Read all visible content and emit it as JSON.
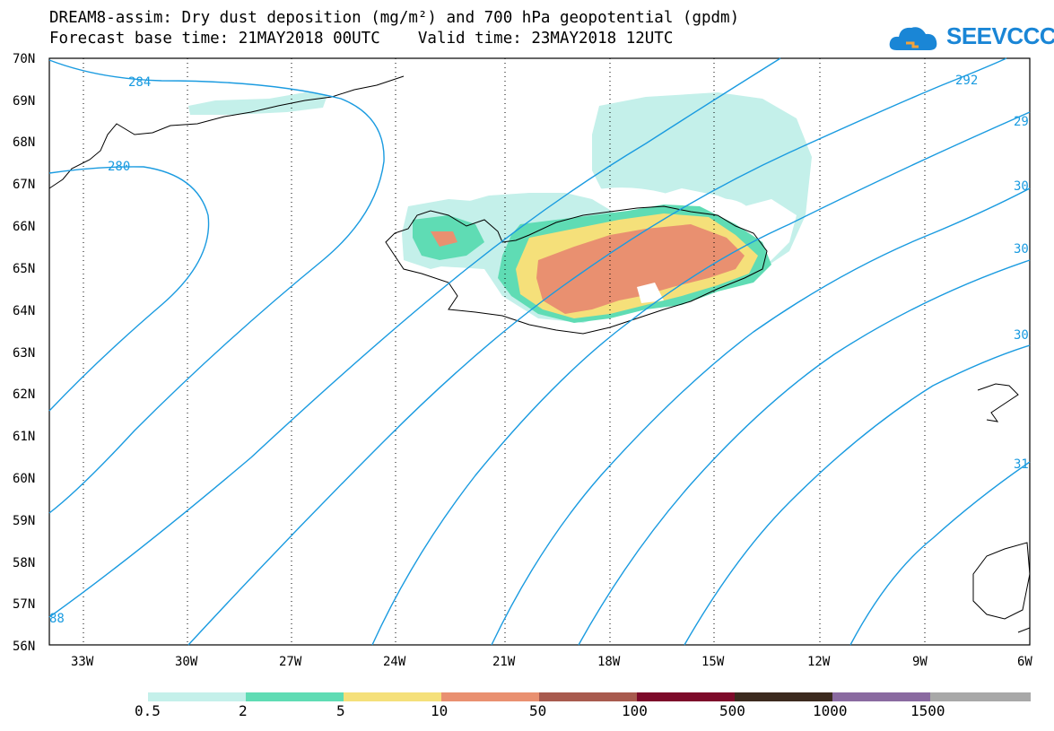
{
  "title_line1": "DREAM8-assim: Dry dust deposition (mg/m²) and 700 hPa geopotential (gpdm)",
  "title_line2": "Forecast base time: 21MAY2018 00UTC    Valid time: 23MAY2018 12UTC",
  "logo_text": "SEEVCCC",
  "map": {
    "lat_labels": [
      "70N",
      "69N",
      "68N",
      "67N",
      "66N",
      "65N",
      "64N",
      "63N",
      "62N",
      "61N",
      "60N",
      "59N",
      "58N",
      "57N",
      "56N"
    ],
    "lon_labels": [
      "33W",
      "30W",
      "27W",
      "24W",
      "21W",
      "18W",
      "15W",
      "12W",
      "9W",
      "6W"
    ],
    "contour_labels": [
      "284",
      "280",
      "292",
      "29",
      "30",
      "30",
      "30",
      "31",
      "88"
    ],
    "colors": {
      "contour": "#1a9be0",
      "coast": "#000000"
    }
  },
  "legend": {
    "labels": [
      "0.5",
      "2",
      "5",
      "10",
      "50",
      "100",
      "500",
      "1000",
      "1500"
    ],
    "colors": [
      "#c4f0ea",
      "#5fdcb4",
      "#f5e07a",
      "#e99070",
      "#a85a4e",
      "#7d0a2a",
      "#3c2a1e",
      "#8a6aa0",
      "#a8a8a8"
    ]
  }
}
